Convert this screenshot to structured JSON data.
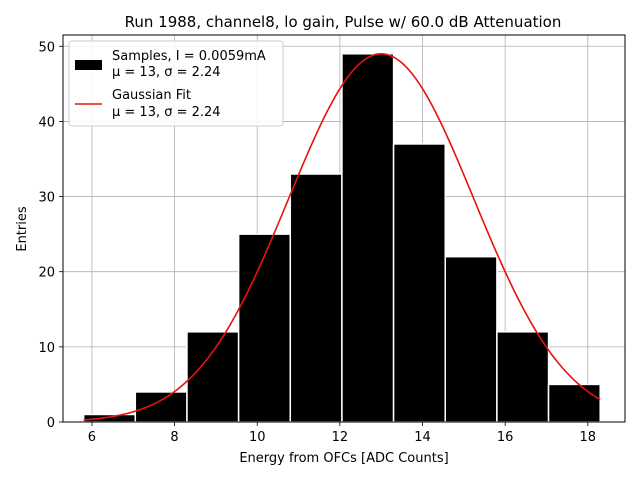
{
  "chart_data": {
    "type": "bar",
    "title": "Run 1988, channel8, lo gain, Pulse w/ 60.0 dB Attenuation",
    "xlabel": "Energy from OFCs [ADC Counts]",
    "ylabel": "Entries",
    "xlim": [
      5.3,
      18.9
    ],
    "ylim": [
      0,
      51.5
    ],
    "xticks": [
      6,
      8,
      10,
      12,
      14,
      16,
      18
    ],
    "yticks": [
      0,
      10,
      20,
      30,
      40,
      50
    ],
    "grid": true,
    "legend_position": "top-left",
    "histogram": {
      "name": "Samples, I = 0.0059mA",
      "stats_label": "μ = 13, σ = 2.24",
      "color": "#000000",
      "bins": [
        {
          "x0": 5.8,
          "x1": 7.05,
          "count": 1
        },
        {
          "x0": 7.05,
          "x1": 8.3,
          "count": 4
        },
        {
          "x0": 8.3,
          "x1": 9.55,
          "count": 12
        },
        {
          "x0": 9.55,
          "x1": 10.8,
          "count": 25
        },
        {
          "x0": 10.8,
          "x1": 12.05,
          "count": 33
        },
        {
          "x0": 12.05,
          "x1": 13.3,
          "count": 49
        },
        {
          "x0": 13.3,
          "x1": 14.55,
          "count": 37
        },
        {
          "x0": 14.55,
          "x1": 15.8,
          "count": 22
        },
        {
          "x0": 15.8,
          "x1": 17.05,
          "count": 12
        },
        {
          "x0": 17.05,
          "x1": 18.3,
          "count": 5
        }
      ]
    },
    "fit": {
      "name": "Gaussian Fit",
      "stats_label": "μ = 13, σ = 2.24",
      "color": "#e8120c",
      "amplitude": 49,
      "mu": 13,
      "sigma": 2.24,
      "x_range": [
        5.8,
        18.3
      ]
    }
  }
}
